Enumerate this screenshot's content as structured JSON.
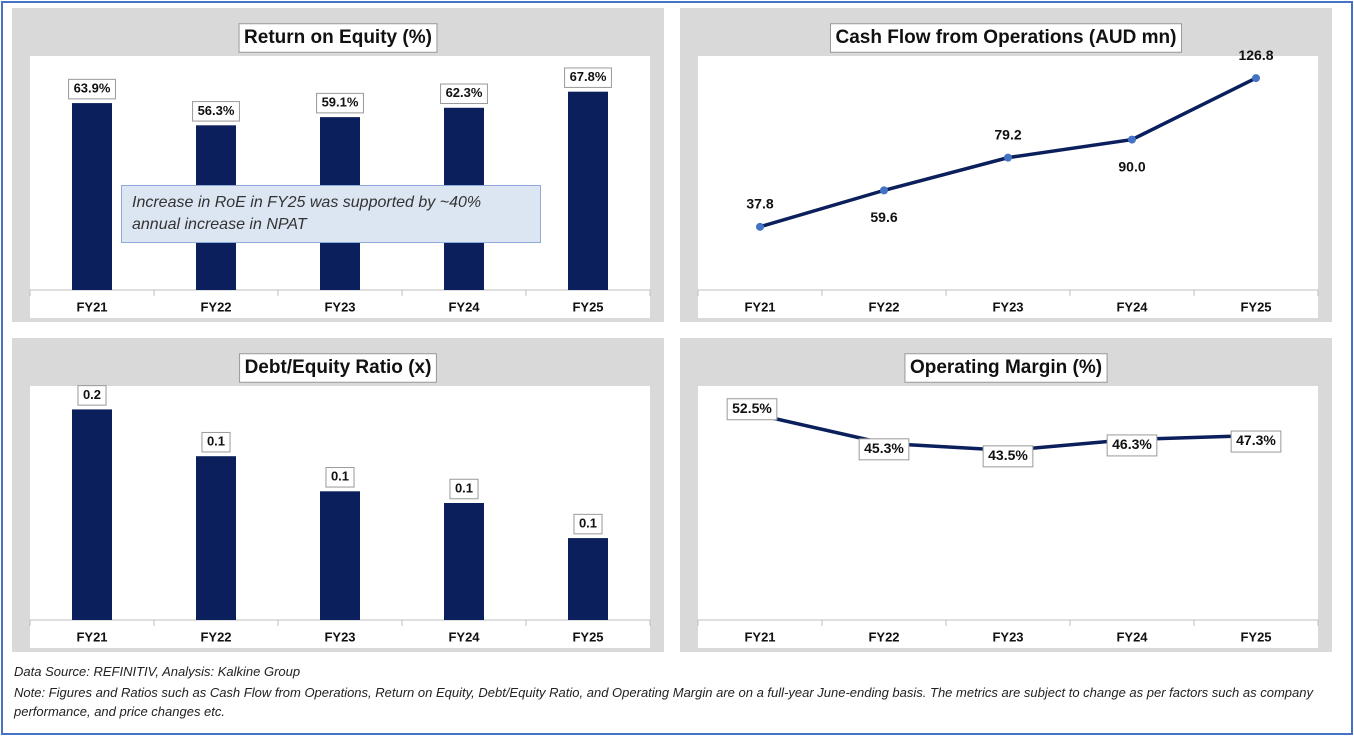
{
  "chart_data": [
    {
      "type": "bar",
      "title": "Return on Equity (%)",
      "categories": [
        "FY21",
        "FY22",
        "FY23",
        "FY24",
        "FY25"
      ],
      "values": [
        63.9,
        56.3,
        59.1,
        62.3,
        67.8
      ],
      "value_labels": [
        "63.9%",
        "56.3%",
        "59.1%",
        "62.3%",
        "67.8%"
      ],
      "color": "#0b1f5c",
      "ylim": [
        0,
        80
      ],
      "label_box": true,
      "annotation": "Increase in RoE in FY25 was supported by ~40% annual increase in NPAT"
    },
    {
      "type": "line",
      "title": "Cash Flow from Operations (AUD mn)",
      "categories": [
        "FY21",
        "FY22",
        "FY23",
        "FY24",
        "FY25"
      ],
      "values": [
        37.8,
        59.6,
        79.2,
        90.0,
        126.8
      ],
      "value_labels": [
        "37.8",
        "59.6",
        "79.2",
        "90.0",
        "126.8"
      ],
      "color": "#0b1f5c",
      "marker_color": "#4472c4",
      "markers": true,
      "ylim": [
        0,
        140
      ],
      "label_box": false
    },
    {
      "type": "bar",
      "title": "Debt/Equity Ratio (x)",
      "categories": [
        "FY21",
        "FY22",
        "FY23",
        "FY24",
        "FY25"
      ],
      "values": [
        0.18,
        0.14,
        0.11,
        0.1,
        0.07
      ],
      "value_labels": [
        "0.2",
        "0.1",
        "0.1",
        "0.1",
        "0.1"
      ],
      "color": "#0b1f5c",
      "ylim": [
        0,
        0.2
      ],
      "label_box": true
    },
    {
      "type": "line",
      "title": "Operating Margin (%)",
      "categories": [
        "FY21",
        "FY22",
        "FY23",
        "FY24",
        "FY25"
      ],
      "values": [
        52.5,
        45.3,
        43.5,
        46.3,
        47.3
      ],
      "value_labels": [
        "52.5%",
        "45.3%",
        "43.5%",
        "46.3%",
        "47.3%"
      ],
      "color": "#0b1f5c",
      "markers": false,
      "ylim": [
        0,
        60
      ],
      "label_box": true
    }
  ],
  "notes": {
    "source": "Data Source: REFINITIV, Analysis: Kalkine Group",
    "note": "Note: Figures and Ratios such as Cash Flow from Operations, Return on Equity, Debt/Equity Ratio, and Operating Margin are on a full-year June-ending basis. The metrics are subject to change as per factors such as company performance, and price changes etc."
  }
}
